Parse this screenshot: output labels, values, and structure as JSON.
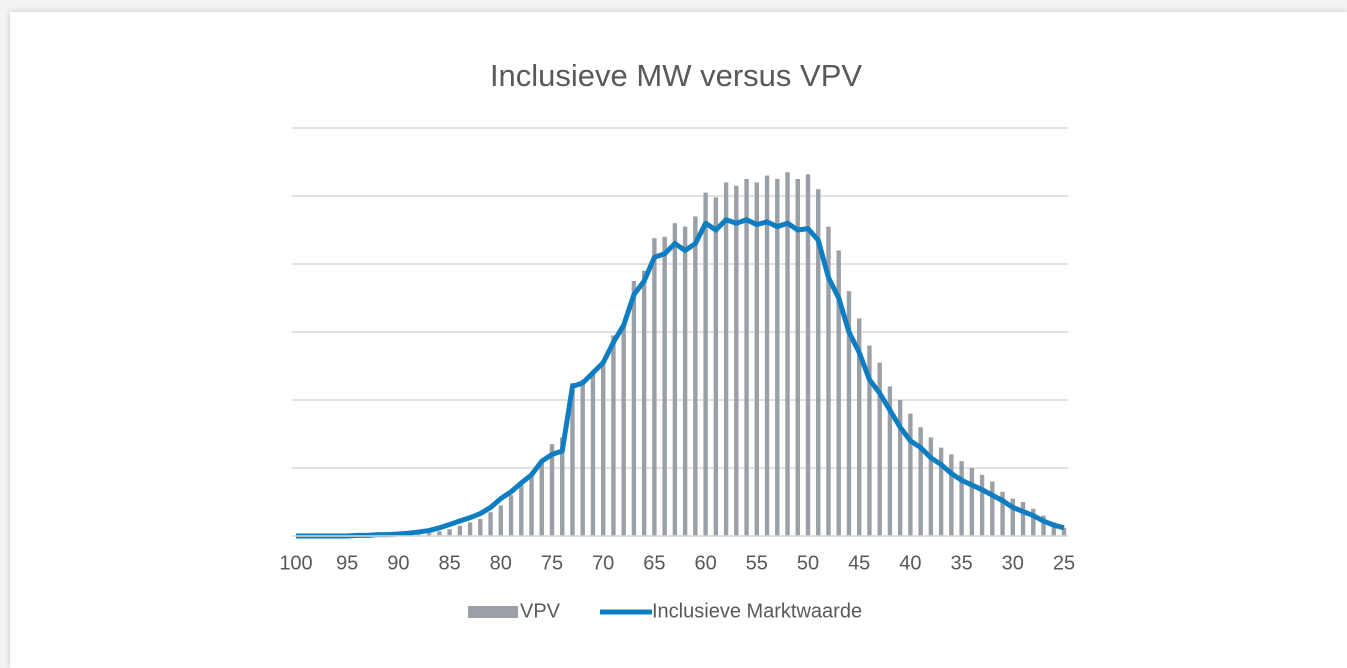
{
  "chart_data": {
    "type": "combo",
    "title": "Inclusieve MW versus VPV",
    "x": [
      100,
      99,
      98,
      97,
      96,
      95,
      94,
      93,
      92,
      91,
      90,
      89,
      88,
      87,
      86,
      85,
      84,
      83,
      82,
      81,
      80,
      79,
      78,
      77,
      76,
      75,
      74,
      73,
      72,
      71,
      70,
      69,
      68,
      67,
      66,
      65,
      64,
      63,
      62,
      61,
      60,
      59,
      58,
      57,
      56,
      55,
      54,
      53,
      52,
      51,
      50,
      49,
      48,
      47,
      46,
      45,
      44,
      43,
      42,
      41,
      40,
      39,
      38,
      37,
      36,
      35,
      34,
      33,
      32,
      31,
      30,
      29,
      28,
      27,
      26,
      25
    ],
    "xlim": [
      100,
      25
    ],
    "xticks": [
      100,
      95,
      90,
      85,
      80,
      75,
      70,
      65,
      60,
      55,
      50,
      45,
      40,
      35,
      30,
      25
    ],
    "ylim": [
      0,
      6
    ],
    "yticks": [
      0,
      1,
      2,
      3,
      4,
      5,
      6
    ],
    "grid": true,
    "series": [
      {
        "name": "VPV",
        "type": "bar",
        "color": "#9ba0a6",
        "values": [
          0,
          0,
          0,
          0,
          0,
          0,
          0,
          0,
          0,
          0,
          0,
          0,
          0.02,
          0.04,
          0.07,
          0.1,
          0.15,
          0.2,
          0.25,
          0.35,
          0.45,
          0.6,
          0.75,
          0.9,
          1.1,
          1.35,
          1.45,
          2.25,
          2.3,
          2.4,
          2.55,
          2.95,
          3.1,
          3.75,
          3.9,
          4.38,
          4.4,
          4.6,
          4.55,
          4.7,
          5.05,
          4.98,
          5.2,
          5.15,
          5.25,
          5.2,
          5.3,
          5.25,
          5.35,
          5.25,
          5.32,
          5.1,
          4.55,
          4.2,
          3.6,
          3.2,
          2.8,
          2.55,
          2.2,
          2.0,
          1.8,
          1.6,
          1.45,
          1.3,
          1.2,
          1.1,
          1.0,
          0.9,
          0.8,
          0.65,
          0.55,
          0.5,
          0.4,
          0.3,
          0.2,
          0.12
        ]
      },
      {
        "name": "Inclusieve Marktwaarde",
        "type": "line",
        "color": "#0e7dc2",
        "values": [
          0,
          0,
          0,
          0,
          0,
          0,
          0.01,
          0.01,
          0.02,
          0.02,
          0.03,
          0.04,
          0.06,
          0.08,
          0.12,
          0.17,
          0.22,
          0.27,
          0.33,
          0.42,
          0.55,
          0.65,
          0.78,
          0.9,
          1.1,
          1.2,
          1.25,
          2.2,
          2.25,
          2.4,
          2.55,
          2.85,
          3.1,
          3.55,
          3.75,
          4.1,
          4.15,
          4.3,
          4.2,
          4.3,
          4.6,
          4.5,
          4.65,
          4.6,
          4.65,
          4.58,
          4.62,
          4.55,
          4.6,
          4.5,
          4.52,
          4.35,
          3.8,
          3.5,
          3.0,
          2.7,
          2.3,
          2.1,
          1.85,
          1.6,
          1.4,
          1.3,
          1.15,
          1.05,
          0.92,
          0.82,
          0.75,
          0.68,
          0.6,
          0.52,
          0.42,
          0.36,
          0.3,
          0.22,
          0.16,
          0.12
        ]
      }
    ]
  }
}
